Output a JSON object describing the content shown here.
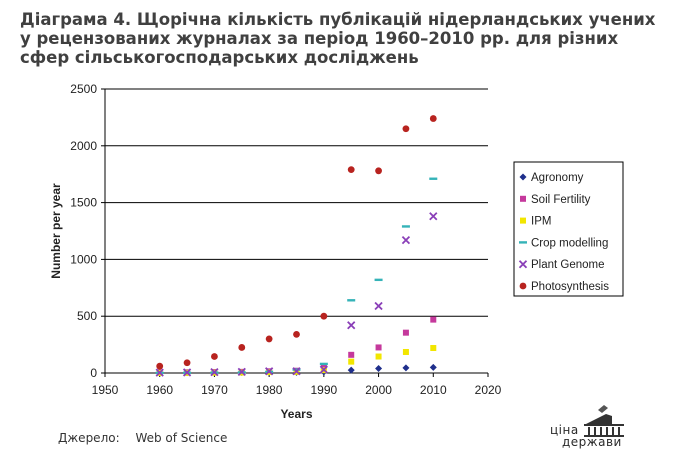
{
  "title": "Діаграма 4. Щорічна кількість публікацій нідерландських учених  у рецензованих журналах за період 1960–2010 рр. для різних сфер сільськогосподарських досліджень",
  "source": {
    "label": "Джерело:",
    "value": "Web of Science"
  },
  "logo": {
    "line1": "ціна",
    "line2": "держави"
  },
  "chart_data": {
    "type": "scatter",
    "xlabel": "Years",
    "ylabel": "Number per year",
    "xlim": [
      1950,
      2020
    ],
    "ylim": [
      0,
      2500
    ],
    "xticks": [
      "1950",
      "1960",
      "1970",
      "1980",
      "1990",
      "2000",
      "2010",
      "2020"
    ],
    "yticks": [
      "0",
      "500",
      "1000",
      "1500",
      "2000",
      "2500"
    ],
    "grid": "horizontal",
    "legend_position": "right",
    "series": [
      {
        "name": "Agronomy",
        "color": "#1f2f8c",
        "marker": "diamond",
        "x": [
          1960,
          1965,
          1970,
          1975,
          1980,
          1985,
          1990,
          1995,
          2000,
          2005,
          2010
        ],
        "y": [
          2,
          3,
          3,
          4,
          5,
          6,
          10,
          25,
          40,
          45,
          50
        ]
      },
      {
        "name": "Soil Fertility",
        "color": "#c5399c",
        "marker": "square",
        "x": [
          1960,
          1965,
          1970,
          1975,
          1980,
          1985,
          1990,
          1995,
          2000,
          2005,
          2010
        ],
        "y": [
          5,
          6,
          8,
          10,
          15,
          20,
          50,
          160,
          225,
          355,
          470
        ]
      },
      {
        "name": "IPM",
        "color": "#f2e600",
        "marker": "square",
        "x": [
          1960,
          1965,
          1970,
          1975,
          1980,
          1985,
          1990,
          1995,
          2000,
          2005,
          2010
        ],
        "y": [
          1,
          2,
          3,
          4,
          8,
          10,
          25,
          100,
          145,
          185,
          220
        ]
      },
      {
        "name": "Crop modelling",
        "color": "#35b3b8",
        "marker": "dash",
        "x": [
          1960,
          1965,
          1970,
          1975,
          1980,
          1985,
          1990,
          1995,
          2000,
          2005,
          2010
        ],
        "y": [
          1,
          2,
          3,
          5,
          10,
          30,
          80,
          640,
          820,
          1290,
          1710
        ]
      },
      {
        "name": "Plant Genome",
        "color": "#8a3fb8",
        "marker": "x",
        "x": [
          1960,
          1965,
          1970,
          1975,
          1980,
          1985,
          1990,
          1995,
          2000,
          2005,
          2010
        ],
        "y": [
          3,
          5,
          8,
          10,
          15,
          15,
          30,
          420,
          590,
          1170,
          1380
        ]
      },
      {
        "name": "Photosynthesis",
        "color": "#b8231f",
        "marker": "circle",
        "x": [
          1960,
          1965,
          1970,
          1975,
          1980,
          1985,
          1990,
          1995,
          2000,
          2005,
          2010
        ],
        "y": [
          60,
          90,
          145,
          225,
          300,
          340,
          500,
          1790,
          1780,
          2150,
          2240
        ]
      }
    ]
  }
}
